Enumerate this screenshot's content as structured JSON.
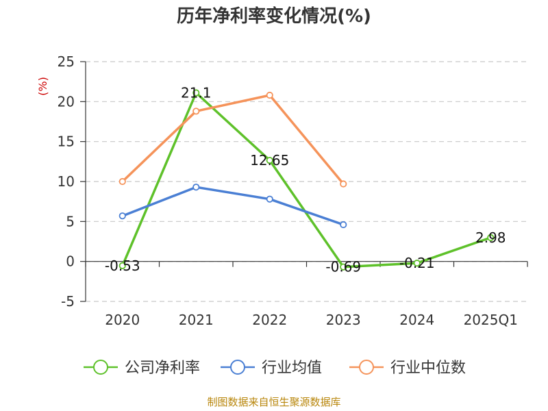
{
  "chart_data": {
    "type": "line",
    "title": "历年净利率变化情况(%)",
    "ylabel": "(%)",
    "categories": [
      "2020",
      "2021",
      "2022",
      "2023",
      "2024",
      "2025Q1"
    ],
    "ylim": [
      -5,
      25
    ],
    "yticks": [
      -5,
      0,
      5,
      10,
      15,
      20,
      25
    ],
    "grid": true,
    "legend_position": "bottom",
    "series": [
      {
        "name": "公司净利率",
        "color": "#5ec12a",
        "values": [
          -0.53,
          21.1,
          12.65,
          -0.69,
          -0.21,
          2.98
        ],
        "labels": [
          "-0.53",
          "21.1",
          "12.65",
          "-0.69",
          "-0.21",
          "2.98"
        ]
      },
      {
        "name": "行业均值",
        "color": "#4a7fd4",
        "values": [
          5.7,
          9.3,
          7.8,
          4.6,
          null,
          null
        ]
      },
      {
        "name": "行业中位数",
        "color": "#f5935a",
        "values": [
          10.0,
          18.8,
          20.8,
          9.7,
          null,
          null
        ]
      }
    ]
  },
  "source": "制图数据来自恒生聚源数据库"
}
